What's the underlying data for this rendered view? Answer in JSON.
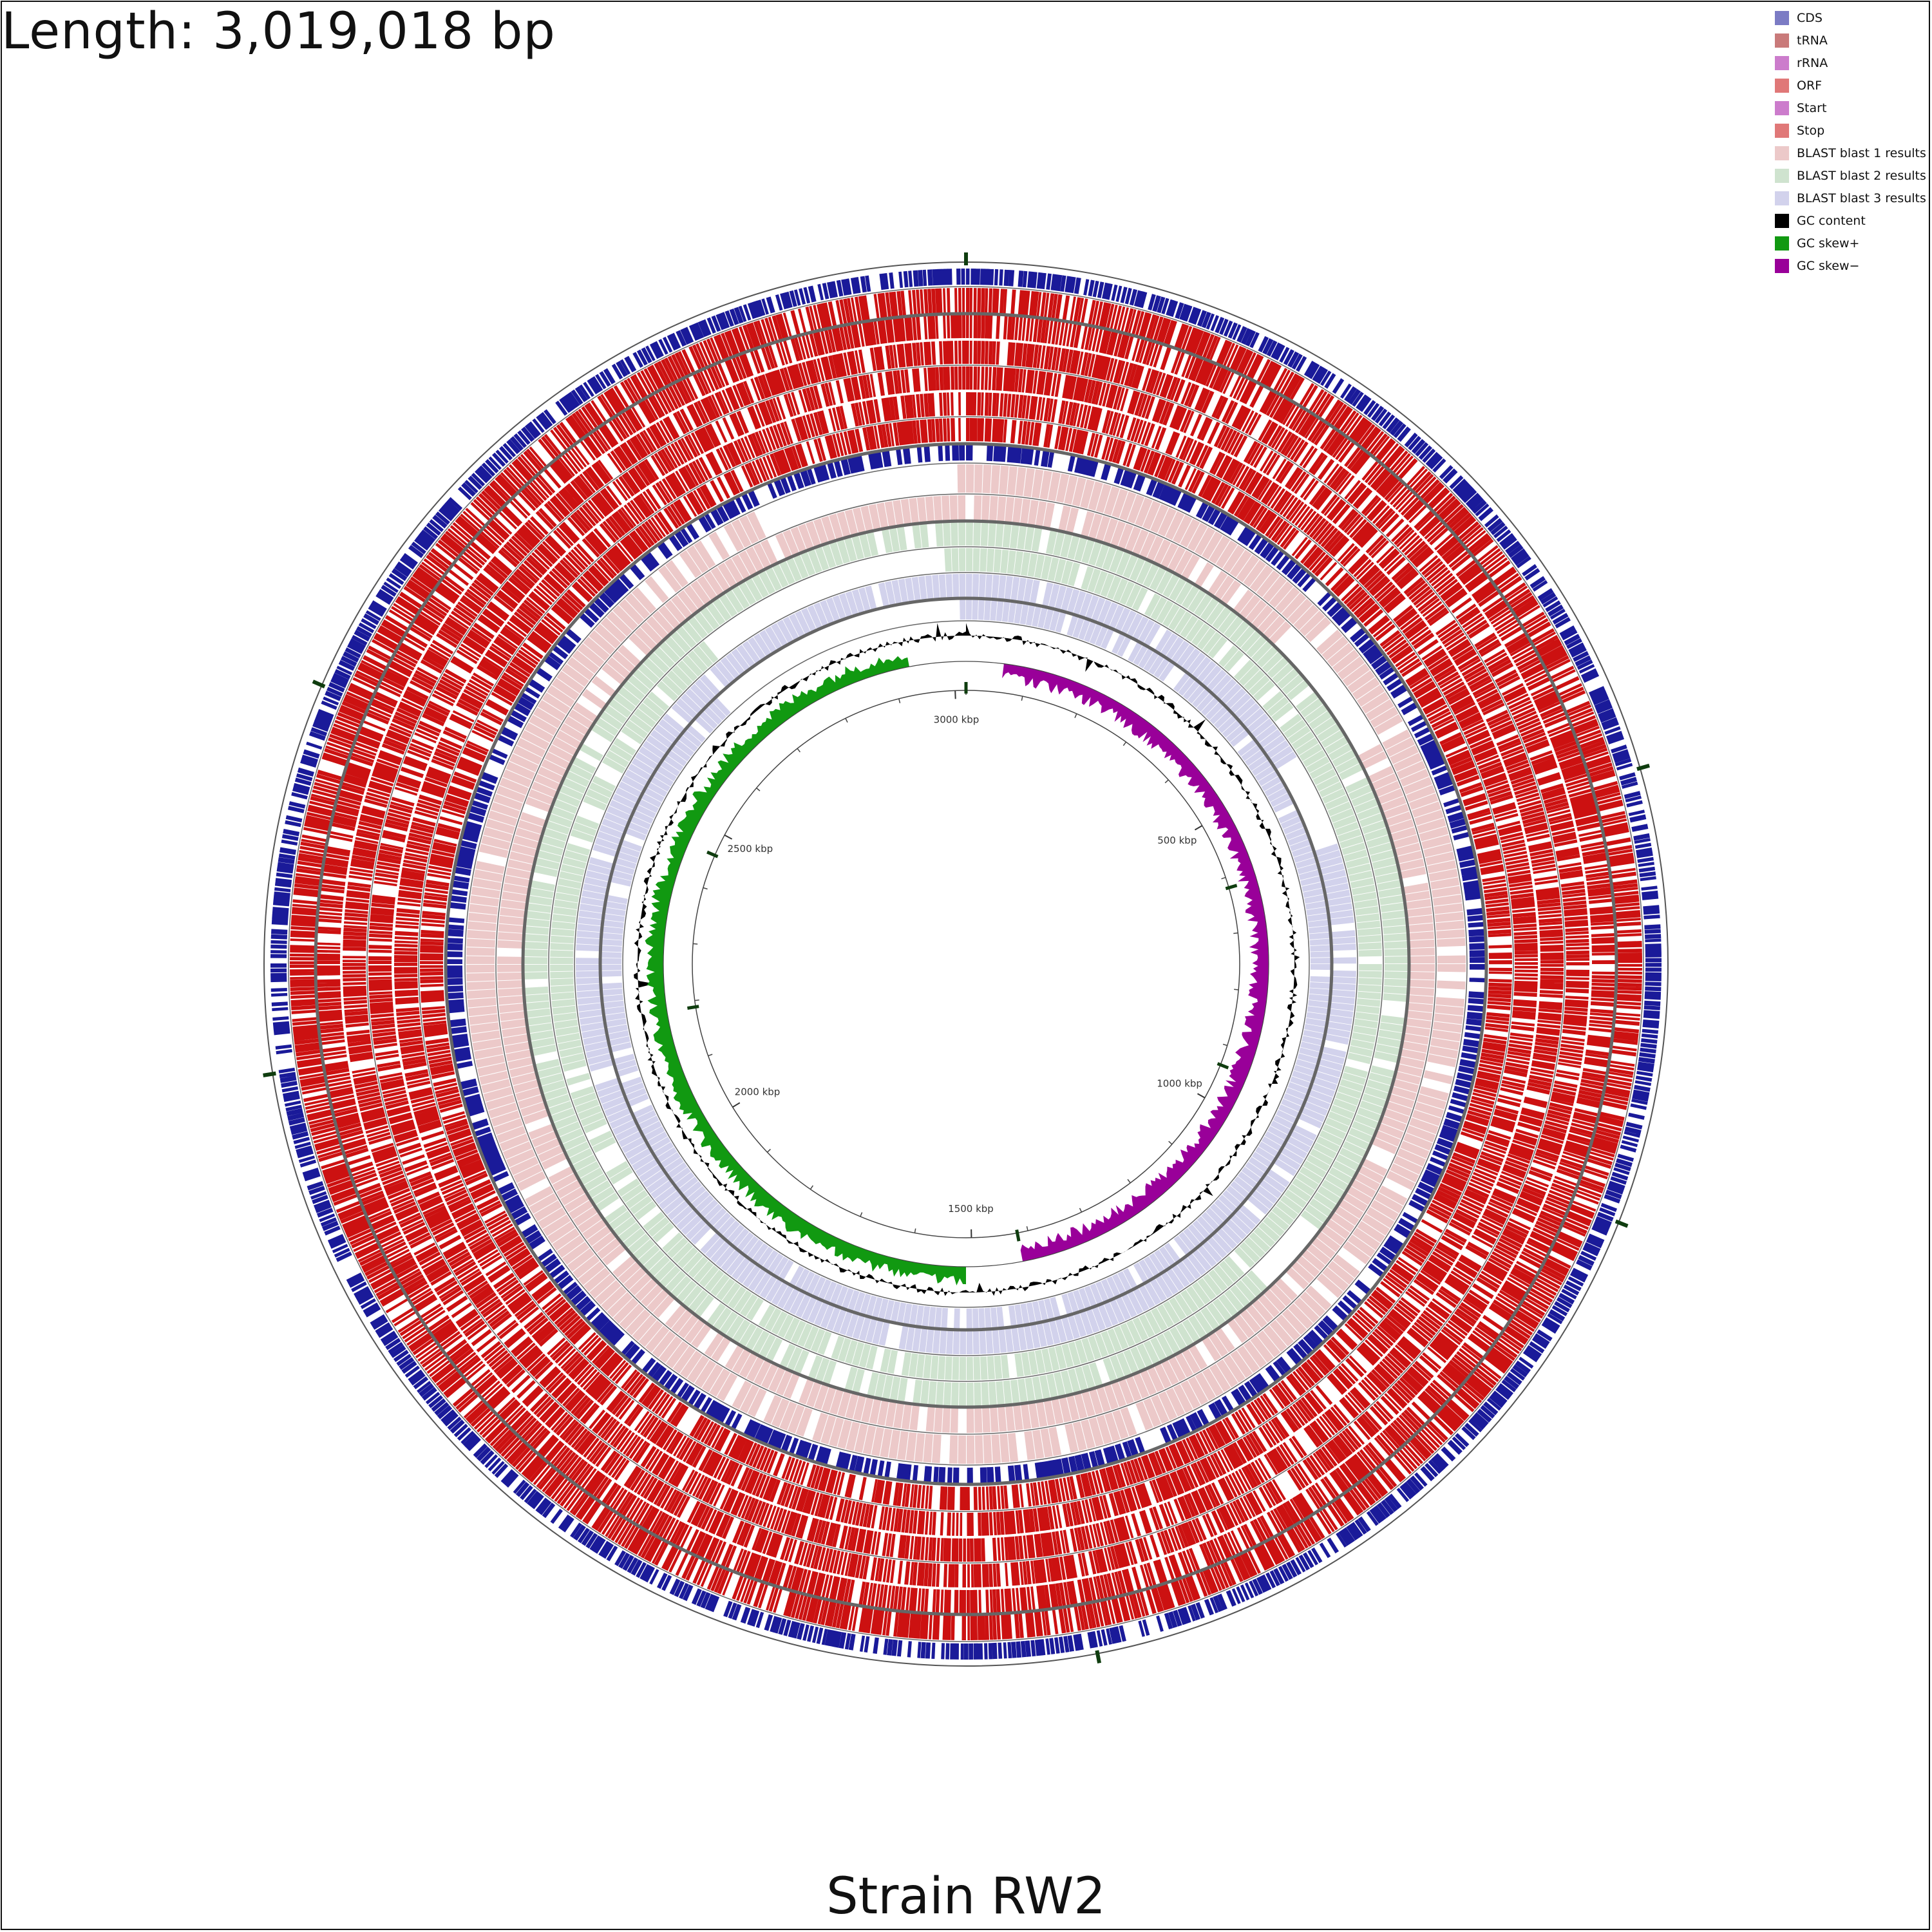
{
  "header": {
    "length_text": "Length: 3,019,018 bp"
  },
  "footer": {
    "title": "Strain RW2"
  },
  "legend": [
    {
      "label": "CDS",
      "color": "#7b7bc4"
    },
    {
      "label": "tRNA",
      "color": "#c97a7a"
    },
    {
      "label": "rRNA",
      "color": "#cc7ccc"
    },
    {
      "label": "ORF",
      "color": "#e07878"
    },
    {
      "label": "Start",
      "color": "#cc7ccc"
    },
    {
      "label": "Stop",
      "color": "#e07878"
    },
    {
      "label": "BLAST blast 1 results",
      "color": "#ecc9c9"
    },
    {
      "label": "BLAST blast 2 results",
      "color": "#cfe3cf"
    },
    {
      "label": "BLAST blast 3 results",
      "color": "#d2d2ec"
    },
    {
      "label": "GC content",
      "color": "#000000"
    },
    {
      "label": "GC skew+",
      "color": "#119911"
    },
    {
      "label": "GC skew−",
      "color": "#990099"
    }
  ],
  "genome": {
    "length_bp": 3019018,
    "ticks": [
      {
        "label": "500 kbp",
        "kbp": 500
      },
      {
        "label": "1000 kbp",
        "kbp": 1000
      },
      {
        "label": "1500 kbp",
        "kbp": 1500
      },
      {
        "label": "2000 kbp",
        "kbp": 2000
      },
      {
        "label": "2500 kbp",
        "kbp": 2500
      },
      {
        "label": "3000 kbp",
        "kbp": 3000
      }
    ]
  },
  "colors": {
    "cds": "#1a1a99",
    "orf_stop": "#cc1111",
    "blast1": "#ecc9c9",
    "blast2": "#cfe3cf",
    "blast3": "#d2d2ec",
    "gc_content": "#000000",
    "gc_skew_plus": "#119911",
    "gc_skew_minus": "#990099",
    "separator": "#666666",
    "marker": "#0f3d0f"
  }
}
